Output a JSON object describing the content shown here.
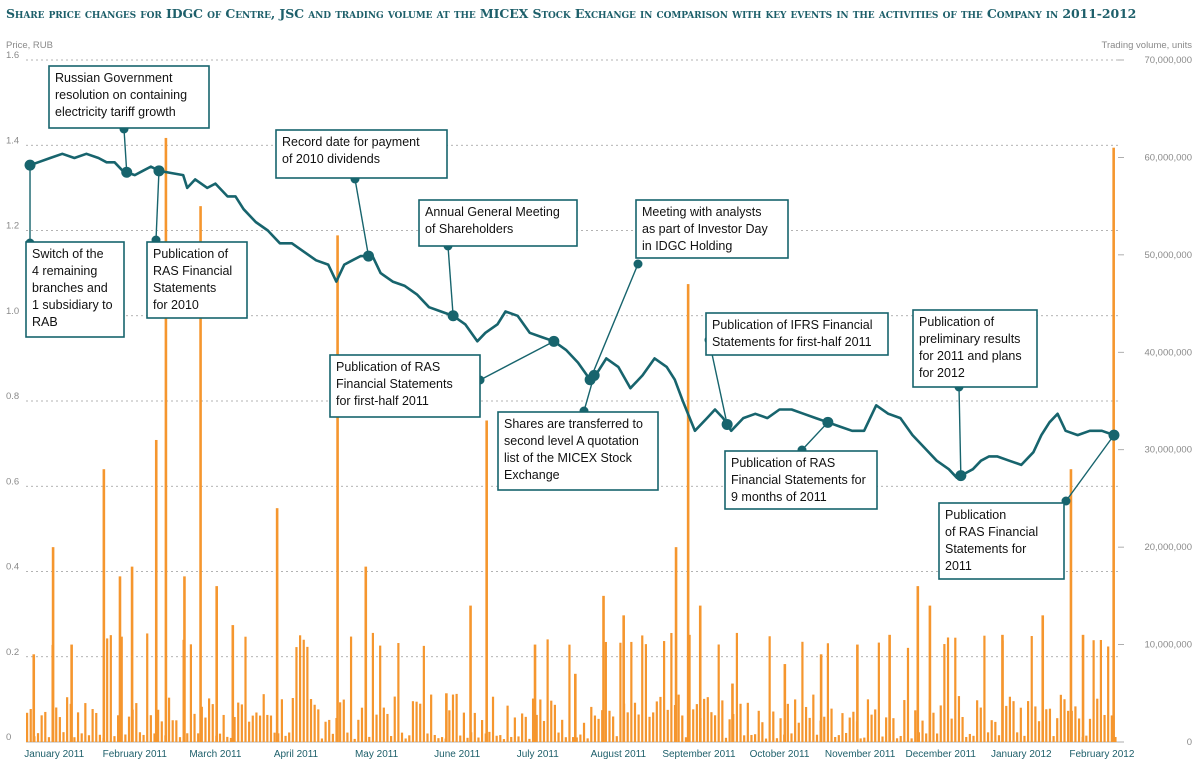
{
  "title": "Share price changes for IDGC of Centre, JSC and trading volume at the MICEX Stock Exchange in comparison with key events in the activities of the Company in 2011-2012",
  "colors": {
    "price_line": "#17646d",
    "volume_bar": "#f5962e",
    "grid": "#9a9a9a",
    "event_box": "#17646d"
  },
  "chart_data": {
    "type": "line",
    "title": "Share price changes for IDGC of Centre, JSC and trading volume at the MICEX Stock Exchange in comparison with key events in the activities of the Company in 2011-2012",
    "ylabel": "Price, RUB",
    "y2label": "Trading volume, units",
    "ylim": [
      0,
      1.6
    ],
    "y2lim": [
      0,
      70000000
    ],
    "yticks": [
      "0",
      "0.2",
      "0.4",
      "0.6",
      "0.8",
      "1.0",
      "1.2",
      "1.4",
      "1.6"
    ],
    "y2ticks": [
      "0",
      "10,000,000",
      "20,000,000",
      "30,000,000",
      "40,000,000",
      "50,000,000",
      "60,000,000",
      "70,000,000"
    ],
    "months": [
      "January 2011",
      "February 2011",
      "March 2011",
      "April 2011",
      "May 2011",
      "June 2011",
      "July 2011",
      "August 2011",
      "September 2011",
      "October 2011",
      "November 2011",
      "December 2011",
      "January 2012",
      "February 2012"
    ],
    "grid": true,
    "price": [
      [
        0.0,
        1.35
      ],
      [
        0.15,
        1.36
      ],
      [
        0.3,
        1.37
      ],
      [
        0.45,
        1.38
      ],
      [
        0.6,
        1.37
      ],
      [
        0.75,
        1.38
      ],
      [
        0.9,
        1.37
      ],
      [
        1.0,
        1.36
      ],
      [
        1.1,
        1.36
      ],
      [
        1.2,
        1.34
      ],
      [
        1.35,
        1.33
      ],
      [
        1.45,
        1.34
      ],
      [
        1.55,
        1.35
      ],
      [
        1.65,
        1.34
      ],
      [
        1.8,
        1.335
      ],
      [
        1.95,
        1.33
      ],
      [
        2.0,
        1.3
      ],
      [
        2.1,
        1.32
      ],
      [
        2.25,
        1.3
      ],
      [
        2.35,
        1.31
      ],
      [
        2.5,
        1.28
      ],
      [
        2.6,
        1.28
      ],
      [
        2.7,
        1.25
      ],
      [
        2.85,
        1.22
      ],
      [
        3.0,
        1.2
      ],
      [
        3.15,
        1.17
      ],
      [
        3.3,
        1.17
      ],
      [
        3.45,
        1.15
      ],
      [
        3.6,
        1.13
      ],
      [
        3.75,
        1.12
      ],
      [
        3.85,
        1.08
      ],
      [
        3.95,
        1.12
      ],
      [
        4.05,
        1.13
      ],
      [
        4.15,
        1.14
      ],
      [
        4.3,
        1.14
      ],
      [
        4.4,
        1.1
      ],
      [
        4.55,
        1.08
      ],
      [
        4.7,
        1.07
      ],
      [
        4.85,
        1.05
      ],
      [
        5.0,
        1.02
      ],
      [
        5.15,
        1.01
      ],
      [
        5.3,
        1.0
      ],
      [
        5.45,
        0.98
      ],
      [
        5.6,
        0.94
      ],
      [
        5.7,
        0.96
      ],
      [
        5.85,
        0.98
      ],
      [
        5.95,
        1.01
      ],
      [
        6.1,
        1.0
      ],
      [
        6.25,
        0.96
      ],
      [
        6.4,
        0.95
      ],
      [
        6.55,
        0.94
      ],
      [
        6.7,
        0.92
      ],
      [
        6.85,
        0.89
      ],
      [
        7.0,
        0.85
      ],
      [
        7.1,
        0.87
      ],
      [
        7.2,
        0.9
      ],
      [
        7.35,
        0.88
      ],
      [
        7.5,
        0.83
      ],
      [
        7.65,
        0.86
      ],
      [
        7.8,
        0.9
      ],
      [
        7.95,
        0.88
      ],
      [
        8.05,
        0.85
      ],
      [
        8.15,
        0.8
      ],
      [
        8.3,
        0.73
      ],
      [
        8.45,
        0.76
      ],
      [
        8.55,
        0.78
      ],
      [
        8.65,
        0.76
      ],
      [
        8.75,
        0.73
      ],
      [
        8.9,
        0.76
      ],
      [
        9.05,
        0.77
      ],
      [
        9.2,
        0.76
      ],
      [
        9.35,
        0.78
      ],
      [
        9.5,
        0.78
      ],
      [
        9.65,
        0.77
      ],
      [
        9.8,
        0.76
      ],
      [
        9.95,
        0.75
      ],
      [
        10.1,
        0.74
      ],
      [
        10.25,
        0.73
      ],
      [
        10.4,
        0.73
      ],
      [
        10.55,
        0.79
      ],
      [
        10.7,
        0.77
      ],
      [
        10.85,
        0.76
      ],
      [
        11.0,
        0.72
      ],
      [
        11.15,
        0.69
      ],
      [
        11.3,
        0.66
      ],
      [
        11.45,
        0.64
      ],
      [
        11.55,
        0.62
      ],
      [
        11.65,
        0.63
      ],
      [
        11.75,
        0.64
      ],
      [
        11.85,
        0.66
      ],
      [
        11.95,
        0.67
      ],
      [
        12.05,
        0.67
      ],
      [
        12.2,
        0.66
      ],
      [
        12.35,
        0.65
      ],
      [
        12.5,
        0.68
      ],
      [
        12.6,
        0.72
      ],
      [
        12.7,
        0.75
      ],
      [
        12.8,
        0.77
      ],
      [
        12.9,
        0.73
      ],
      [
        13.05,
        0.72
      ],
      [
        13.2,
        0.73
      ],
      [
        13.35,
        0.73
      ],
      [
        13.5,
        0.72
      ]
    ],
    "volume_peaks": [
      [
        0.08,
        9000000
      ],
      [
        0.32,
        20000000
      ],
      [
        0.55,
        10000000
      ],
      [
        0.95,
        28000000
      ],
      [
        1.15,
        17000000
      ],
      [
        1.3,
        18000000
      ],
      [
        1.6,
        31000000
      ],
      [
        1.72,
        62000000
      ],
      [
        1.95,
        17000000
      ],
      [
        2.15,
        55000000
      ],
      [
        2.35,
        16000000
      ],
      [
        2.55,
        12000000
      ],
      [
        3.1,
        24000000
      ],
      [
        3.85,
        52000000
      ],
      [
        4.2,
        18000000
      ],
      [
        5.2,
        5000000
      ],
      [
        5.5,
        14000000
      ],
      [
        5.7,
        33000000
      ],
      [
        6.3,
        10000000
      ],
      [
        6.8,
        7000000
      ],
      [
        7.15,
        15000000
      ],
      [
        7.4,
        13000000
      ],
      [
        8.05,
        20000000
      ],
      [
        8.2,
        47000000
      ],
      [
        8.35,
        14000000
      ],
      [
        8.75,
        6000000
      ],
      [
        9.4,
        8000000
      ],
      [
        9.85,
        9000000
      ],
      [
        10.3,
        10000000
      ],
      [
        10.7,
        11000000
      ],
      [
        11.05,
        16000000
      ],
      [
        11.2,
        14000000
      ],
      [
        12.1,
        11000000
      ],
      [
        12.6,
        13000000
      ],
      [
        12.95,
        28000000
      ],
      [
        13.1,
        11000000
      ],
      [
        13.48,
        61000000
      ]
    ]
  },
  "events": [
    {
      "id": "rab-switch",
      "lines": [
        "Switch of the",
        "4 remaining",
        "branches and",
        "1 subsidiary to",
        "RAB"
      ]
    },
    {
      "id": "gov-resolution",
      "lines": [
        "Russian Government",
        "resolution on containing",
        "electricity tariff growth"
      ]
    },
    {
      "id": "ras-2010",
      "lines": [
        "Publication of",
        "RAS Financial",
        "Statements",
        "for 2010"
      ]
    },
    {
      "id": "record-date",
      "lines": [
        "Record date for payment",
        "of 2010 dividends"
      ]
    },
    {
      "id": "agm",
      "lines": [
        "Annual General Meeting",
        "of Shareholders"
      ]
    },
    {
      "id": "analysts-meeting",
      "lines": [
        "Meeting with analysts",
        "as part of Investor Day",
        "in IDGC Holding"
      ]
    },
    {
      "id": "ras-h1",
      "lines": [
        "Publication of RAS",
        "Financial Statements",
        "for first-half 2011"
      ]
    },
    {
      "id": "ifrs-h1",
      "lines": [
        "Publication of IFRS Financial",
        "Statements for first-half 2011"
      ]
    },
    {
      "id": "level-a",
      "lines": [
        "Shares are transferred to",
        "second level A quotation",
        "list of the MICEX Stock",
        "Exchange"
      ]
    },
    {
      "id": "ras-9m",
      "lines": [
        "Publication of RAS",
        "Financial Statements for",
        "9 months of 2011"
      ]
    },
    {
      "id": "prelim-results",
      "lines": [
        "Publication of",
        "preliminary results",
        "for 2011 and plans",
        "for 2012"
      ]
    },
    {
      "id": "ras-2011",
      "lines": [
        "Publication",
        "of RAS Financial",
        "Statements for",
        "2011"
      ]
    }
  ]
}
